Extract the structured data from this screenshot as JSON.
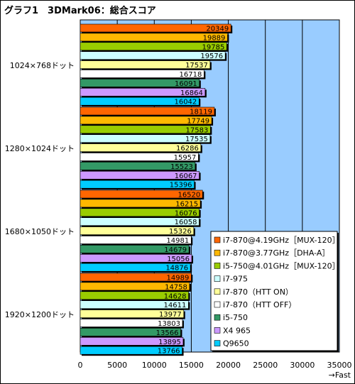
{
  "chart_data": {
    "type": "bar",
    "orientation": "horizontal",
    "title": "グラフ1　3DMark06：総合スコア",
    "xlabel": "→Fast",
    "xlim": [
      0,
      35000
    ],
    "xticks": [
      0,
      5000,
      10000,
      15000,
      20000,
      25000,
      30000,
      35000
    ],
    "grid": true,
    "legend_position": "bottom-right",
    "categories": [
      "1024×768ドット",
      "1280×1024ドット",
      "1680×1050ドット",
      "1920×1200ドット"
    ],
    "series": [
      {
        "name": "i7-870@4.19GHz［MUX-120］",
        "color": "#ff6600",
        "values": [
          20349,
          18119,
          16520,
          14989
        ]
      },
      {
        "name": "i7-870@3.77GHz［DHA-A］",
        "color": "#ffb800",
        "values": [
          19889,
          17749,
          16215,
          14758
        ]
      },
      {
        "name": "i5-750@4.01GHz［MUX-120］",
        "color": "#99cc00",
        "values": [
          19785,
          17583,
          16076,
          14628
        ]
      },
      {
        "name": "i7-975",
        "color": "#ccffff",
        "values": [
          19576,
          17535,
          16058,
          14611
        ]
      },
      {
        "name": "i7-870（HTT ON）",
        "color": "#ffff99",
        "values": [
          17537,
          16286,
          15326,
          13977
        ]
      },
      {
        "name": "i7-870（HTT OFF）",
        "color": "#ffffff",
        "values": [
          16718,
          15957,
          14981,
          13803
        ]
      },
      {
        "name": "i5-750",
        "color": "#339966",
        "values": [
          16091,
          15523,
          14679,
          13566
        ]
      },
      {
        "name": "X4 965",
        "color": "#cc99ff",
        "values": [
          16864,
          16067,
          15056,
          13895
        ]
      },
      {
        "name": "Q9650",
        "color": "#00ccff",
        "values": [
          16042,
          15396,
          14876,
          13766
        ]
      }
    ]
  }
}
